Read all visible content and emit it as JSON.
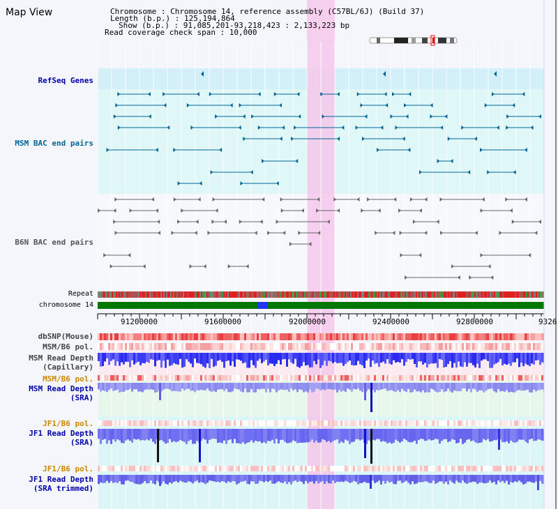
{
  "page": {
    "title": "Map View"
  },
  "info": {
    "chromosome_line": "Chromosome    : Chromosome 14, reference assembly (C57BL/6J) (Build 37)",
    "length_line": "Length (b.p.) : 125,194,864",
    "show_line": "Show (b.p.) : 91,085,201-93,218,423 : 2,133,223 bp",
    "coverage_line": "Read coverage check span : 10,000"
  },
  "tracks": {
    "refseq": "RefSeq Genes",
    "msm_bac": "MSM BAC end pairs",
    "b6n_bac": "B6N BAC end pairs",
    "repeat": "Repeat",
    "chromosome": "chromosome 14",
    "dbsnp": "dbSNP(Mouse)",
    "msm_b6_pol_1": "MSM/B6 pol.",
    "msm_read_depth_cap_1": "MSM Read Depth",
    "msm_read_depth_cap_2": "(Capillary)",
    "msm_b6_pol_2": "MSM/B6 pol.",
    "msm_read_depth_sra_1": "MSM Read Depth",
    "msm_read_depth_sra_2": "(SRA)",
    "jf1_b6_pol_1": "JF1/B6 pol.",
    "jf1_read_depth_sra_1": "JF1 Read Depth",
    "jf1_read_depth_sra_2": "(SRA)",
    "jf1_b6_pol_2": "JF1/B6 pol.",
    "jf1_read_depth_trim_1": "JF1 Read Depth",
    "jf1_read_depth_trim_2": "(SRA trimmed)"
  },
  "ruler": {
    "ticks": [
      "91200000",
      "91600000",
      "92000000",
      "92400000",
      "92800000",
      "9326"
    ]
  },
  "colors": {
    "refseq": "#006699",
    "msm_bac": "#006699",
    "b6n_bac": "#666666",
    "orange": "#cc8800",
    "blue_label": "#0000aa",
    "highlight": "#f5c8ea"
  }
}
